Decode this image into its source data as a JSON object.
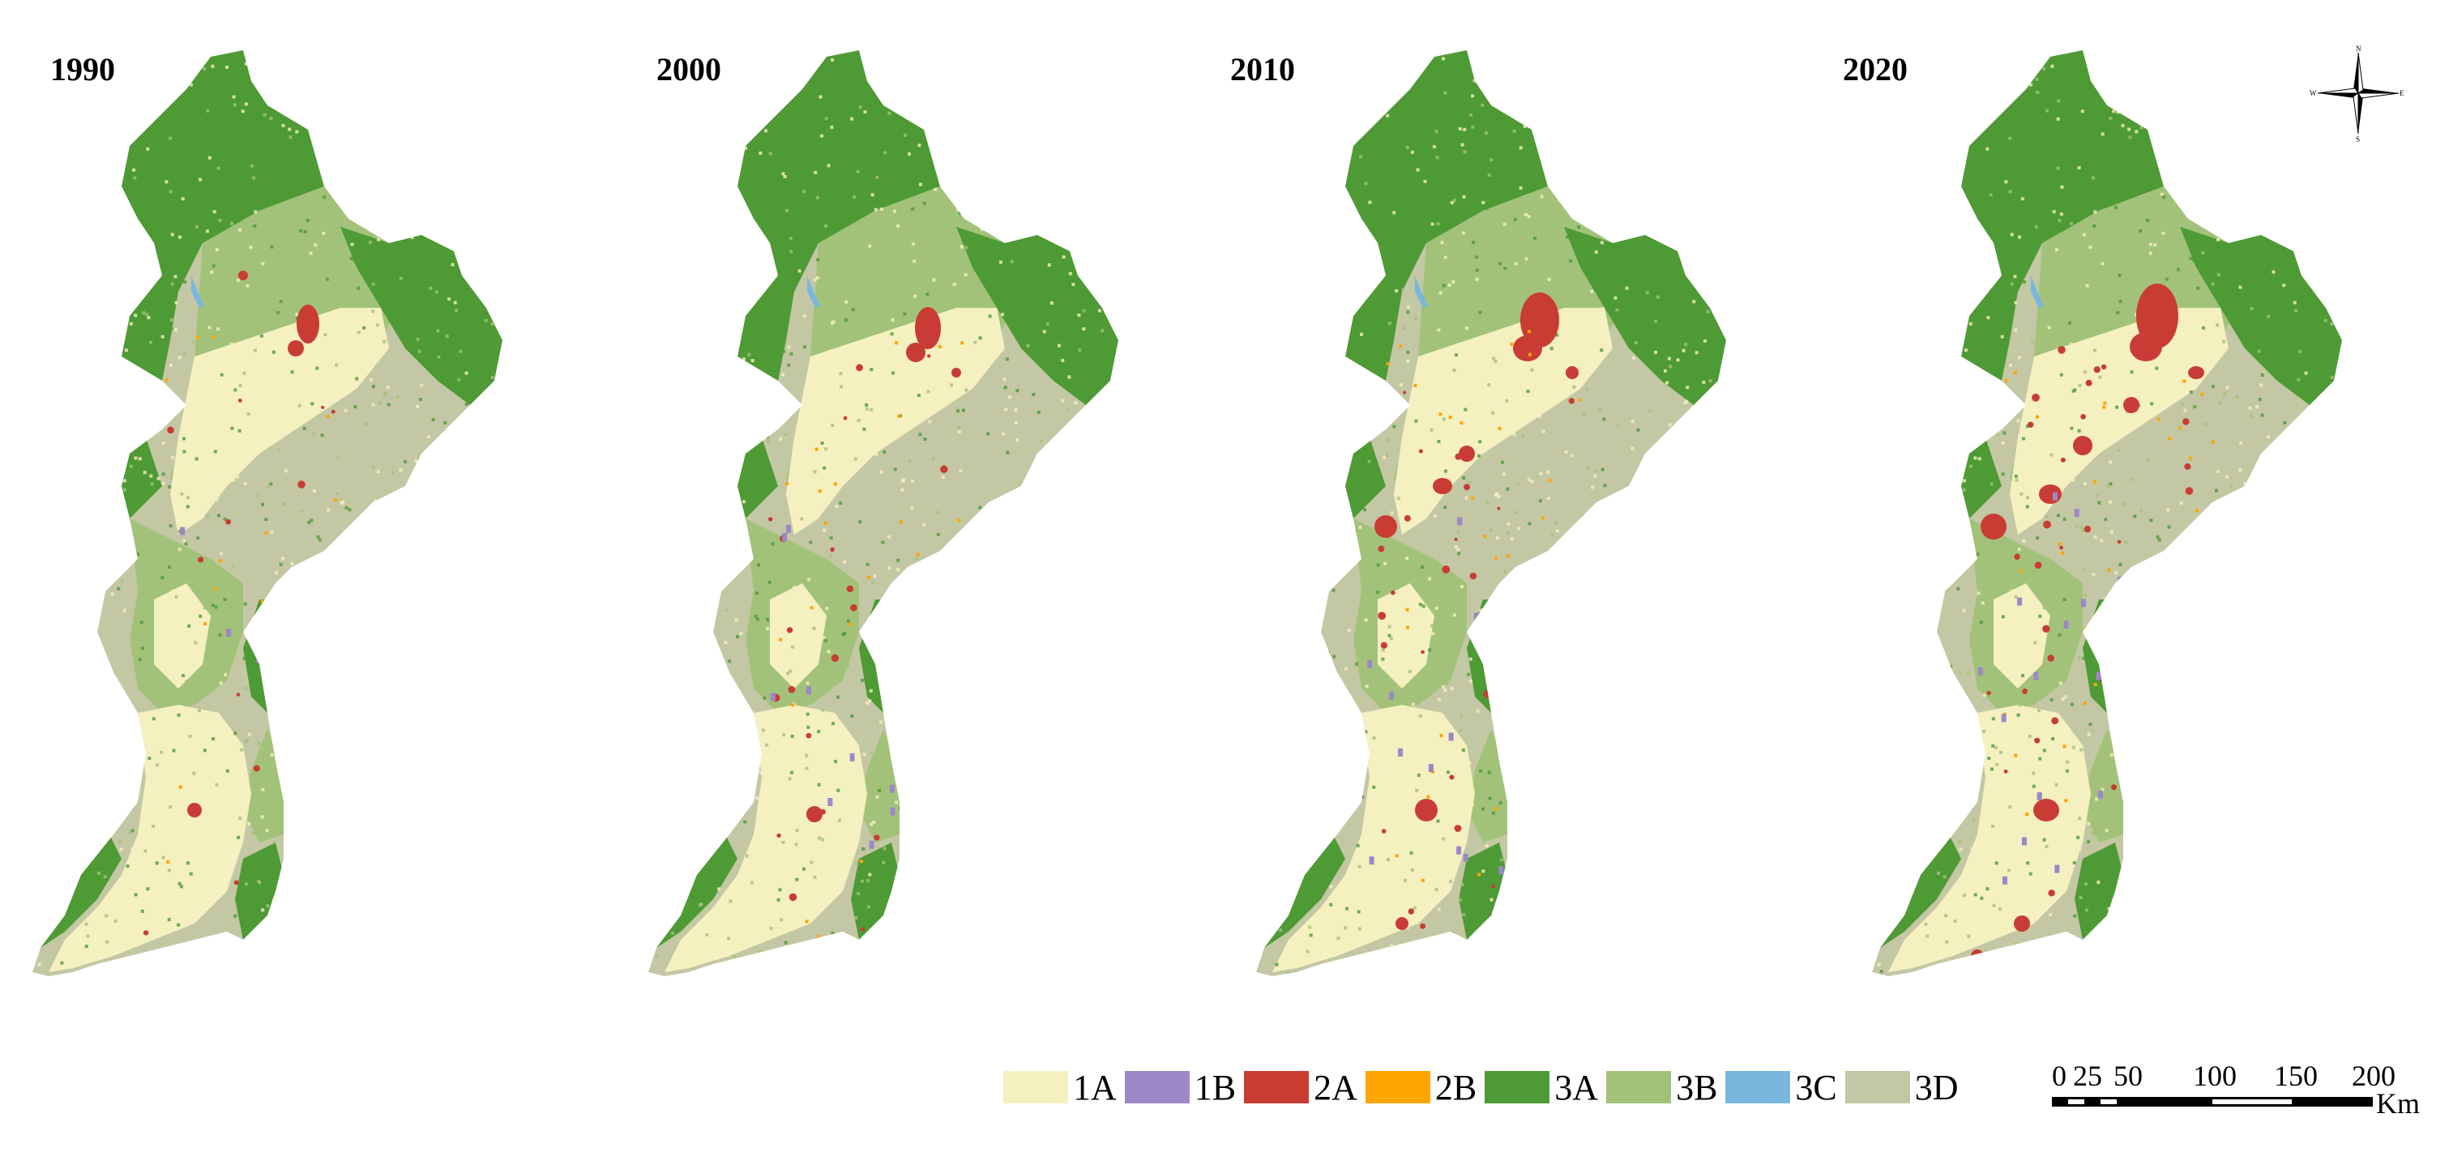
{
  "panels": [
    {
      "year": "1990"
    },
    {
      "year": "2000"
    },
    {
      "year": "2010"
    },
    {
      "year": "2020"
    }
  ],
  "legend": [
    {
      "code": "1A",
      "color": "#f5f0c0"
    },
    {
      "code": "1B",
      "color": "#9c88c6"
    },
    {
      "code": "2A",
      "color": "#c83c34"
    },
    {
      "code": "2B",
      "color": "#fea500"
    },
    {
      "code": "3A",
      "color": "#4e9a35"
    },
    {
      "code": "3B",
      "color": "#a2c27a"
    },
    {
      "code": "3C",
      "color": "#7ab7de"
    },
    {
      "code": "3D",
      "color": "#c4c7a4"
    }
  ],
  "scalebar": {
    "ticks": [
      "0",
      "25",
      "50",
      "100",
      "150",
      "200"
    ],
    "unit": "Km"
  },
  "compass": {
    "n": "N",
    "s": "S",
    "e": "E",
    "w": "W"
  }
}
